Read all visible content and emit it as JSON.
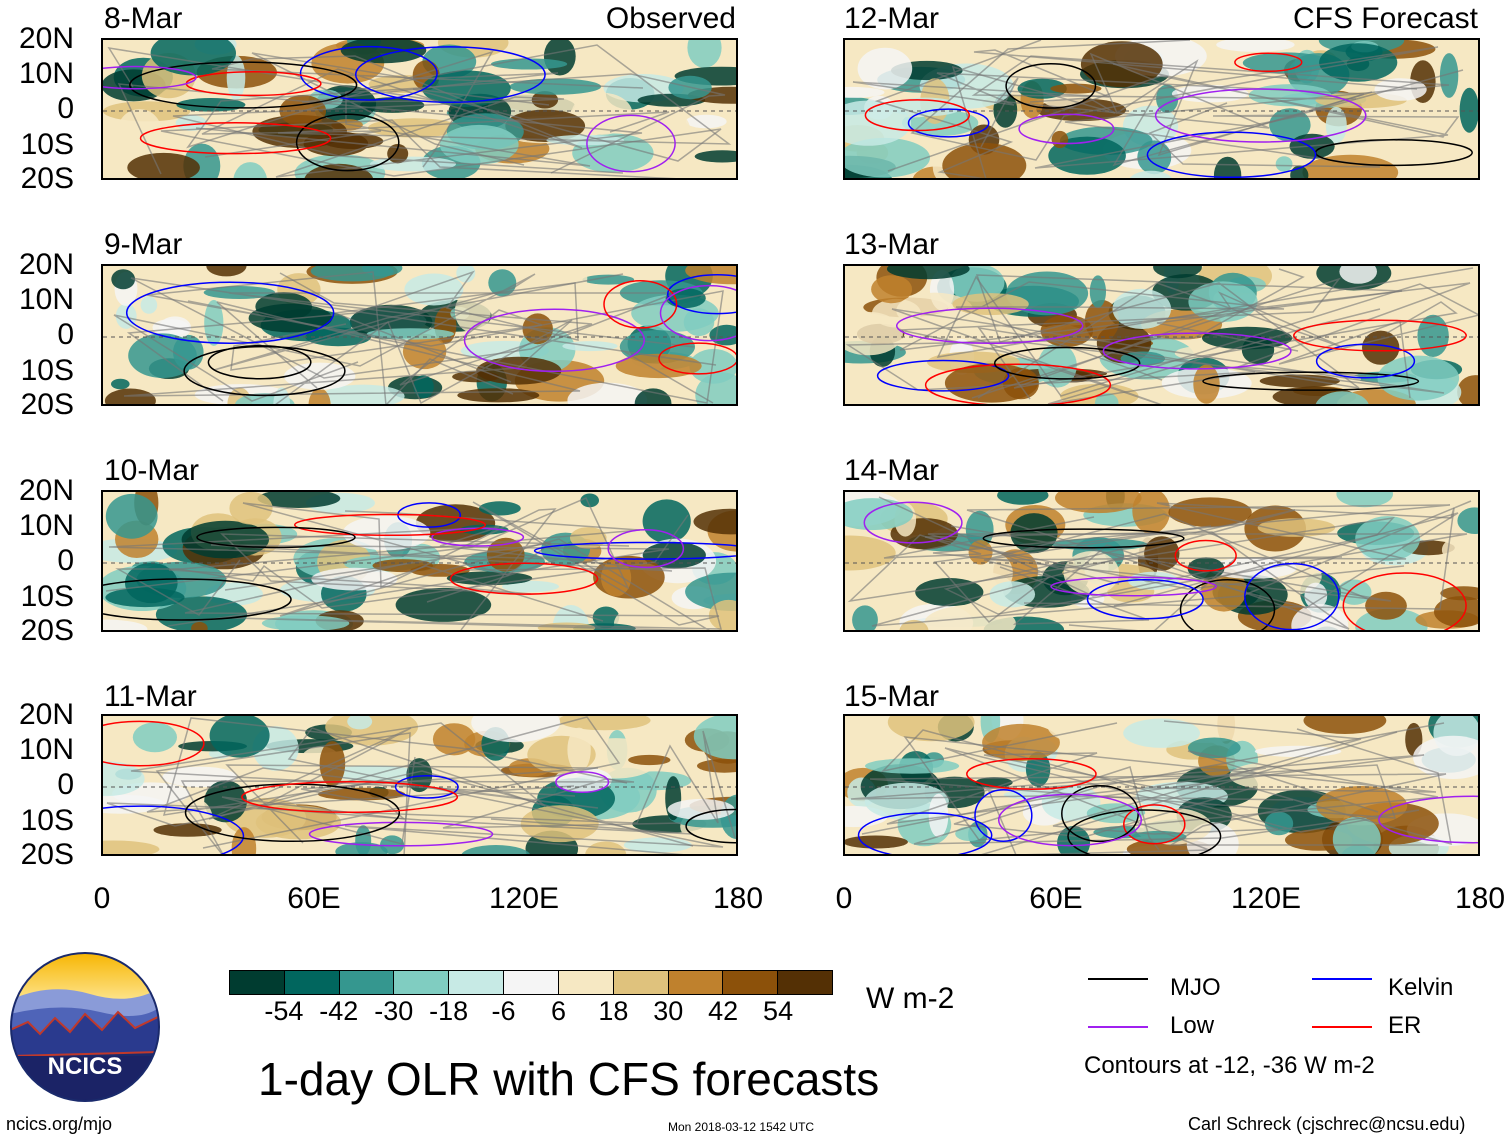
{
  "figure": {
    "title": "1-day OLR with CFS forecasts",
    "observed_label": "Observed",
    "forecast_label": "CFS Forecast",
    "url": "ncics.org/mjo",
    "timestamp": "Mon 2018-03-12 1542 UTC",
    "credit": "Carl Schreck (cjschrec@ncsu.edu)",
    "logo_text": "NCICS"
  },
  "panels_left": [
    "8-Mar",
    "9-Mar",
    "10-Mar",
    "11-Mar"
  ],
  "panels_right": [
    "12-Mar",
    "13-Mar",
    "14-Mar",
    "15-Mar"
  ],
  "lat_labels": [
    "20N",
    "10N",
    "0",
    "10S",
    "20S"
  ],
  "lon_labels": [
    "0",
    "60E",
    "120E",
    "180"
  ],
  "colorbar": {
    "unit": "W m-2",
    "labels": [
      "-54",
      "-42",
      "-30",
      "-18",
      "-6",
      "6",
      "18",
      "30",
      "42",
      "54"
    ],
    "colors": [
      "#003c30",
      "#01665e",
      "#35978f",
      "#80cdc1",
      "#c7eae5",
      "#f5f5f5",
      "#f6e8c3",
      "#dfc27d",
      "#bf812d",
      "#8c510a",
      "#543005"
    ]
  },
  "legend": {
    "items": [
      {
        "label": "MJO",
        "color": "#000000"
      },
      {
        "label": "Kelvin",
        "color": "#0000ff"
      },
      {
        "label": "Low",
        "color": "#a020f0"
      },
      {
        "label": "ER",
        "color": "#ff0000"
      }
    ],
    "note": "Contours at -12, -36 W m-2"
  }
}
